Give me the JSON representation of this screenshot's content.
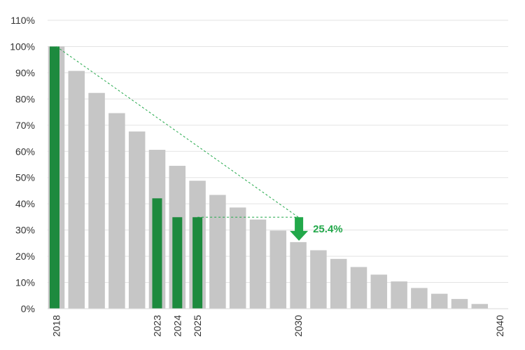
{
  "chart_data": {
    "type": "bar",
    "title": "",
    "xlabel": "",
    "ylabel": "",
    "ylim": [
      0,
      110
    ],
    "ytick_step": 10,
    "ytick_suffix": "%",
    "grid": true,
    "colors": {
      "projection": "#c6c6c6",
      "actual": "#1d8a3e",
      "annotation": "#22a84a",
      "grid": "#e3e3e3"
    },
    "x": [
      2018,
      2019,
      2020,
      2021,
      2022,
      2023,
      2024,
      2025,
      2026,
      2027,
      2028,
      2029,
      2030,
      2031,
      2032,
      2033,
      2034,
      2035,
      2036,
      2037,
      2038,
      2039,
      2040
    ],
    "xtick_labels": [
      "2018",
      "2023",
      "2024",
      "2025",
      "2030",
      "2040"
    ],
    "series": [
      {
        "values": [
          100,
          90.7,
          82.3,
          74.6,
          67.6,
          60.6,
          54.5,
          48.8,
          43.4,
          38.6,
          34.0,
          29.8,
          25.4,
          22.3,
          19.0,
          15.9,
          13.0,
          10.4,
          7.9,
          5.7,
          3.7,
          1.8,
          0
        ]
      },
      {
        "values": [
          100,
          null,
          null,
          null,
          null,
          42.1,
          34.9,
          34.9,
          null,
          null,
          null,
          null,
          null,
          null,
          null,
          null,
          null,
          null,
          null,
          null,
          null,
          null,
          null
        ]
      }
    ],
    "annotations": [
      {
        "type": "dashed-line",
        "from": [
          2018,
          100
        ],
        "to": [
          2030,
          34.9
        ]
      },
      {
        "type": "dashed-line",
        "from": [
          2025,
          34.9
        ],
        "to": [
          2030,
          34.9
        ]
      },
      {
        "type": "arrow-down",
        "x": 2030,
        "from": 34.9,
        "to": 25.4,
        "label": "25.4%"
      }
    ]
  }
}
